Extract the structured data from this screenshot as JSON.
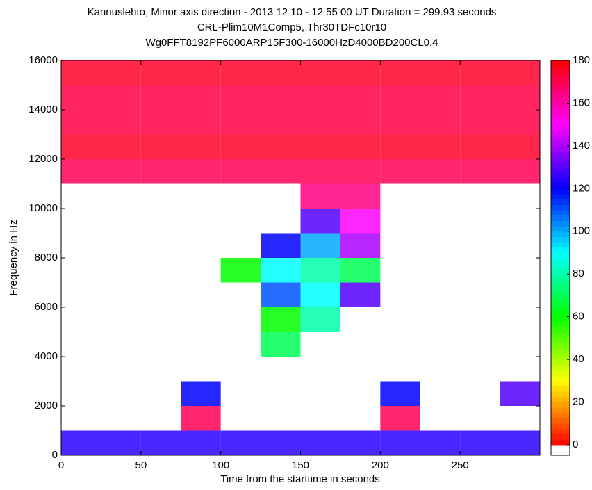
{
  "chart_data": {
    "type": "heatmap",
    "title": [
      "Kannuslehto, Minor axis direction - 2013 12 10 - 12 55 00 UT  Duration = 299.93 seconds",
      "CRL-Plim10M1Comp5, Thr30TDFc10r10",
      "Wg0FFT8192PF6000ARP15F300-16000HzD4000BD200CL0.4"
    ],
    "xlabel": "Time from the starttime in seconds",
    "ylabel": "Frequency in Hz",
    "x_edges": [
      0,
      25,
      50,
      75,
      100,
      125,
      150,
      175,
      200,
      225,
      250,
      275,
      300
    ],
    "y_edges": [
      0,
      1000,
      2000,
      3000,
      4000,
      5000,
      6000,
      7000,
      8000,
      9000,
      10000,
      11000,
      12000,
      13000,
      14000,
      15000,
      16000
    ],
    "z": [
      [
        125,
        125,
        125,
        125,
        125,
        125,
        125,
        125,
        125,
        125,
        125,
        125
      ],
      [
        null,
        null,
        null,
        170,
        null,
        null,
        null,
        null,
        170,
        null,
        null,
        null
      ],
      [
        null,
        null,
        null,
        120,
        null,
        null,
        null,
        null,
        120,
        null,
        null,
        130
      ],
      [
        null,
        null,
        null,
        null,
        null,
        null,
        null,
        null,
        null,
        null,
        null,
        null
      ],
      [
        null,
        null,
        null,
        null,
        null,
        70,
        null,
        null,
        null,
        null,
        null,
        null
      ],
      [
        null,
        null,
        null,
        null,
        null,
        60,
        80,
        null,
        null,
        null,
        null,
        null
      ],
      [
        null,
        null,
        null,
        null,
        null,
        110,
        90,
        130,
        null,
        null,
        null,
        null
      ],
      [
        null,
        null,
        null,
        null,
        60,
        90,
        80,
        70,
        null,
        null,
        null,
        null
      ],
      [
        null,
        null,
        null,
        null,
        null,
        120,
        100,
        140,
        null,
        null,
        null,
        null
      ],
      [
        null,
        null,
        null,
        null,
        null,
        null,
        130,
        150,
        null,
        null,
        null,
        null
      ],
      [
        null,
        null,
        null,
        null,
        null,
        null,
        165,
        165,
        null,
        null,
        null,
        null
      ],
      [
        170,
        170,
        170,
        170,
        170,
        170,
        170,
        170,
        170,
        170,
        170,
        170
      ],
      [
        175,
        175,
        175,
        175,
        175,
        175,
        175,
        175,
        175,
        175,
        175,
        175
      ],
      [
        172,
        172,
        172,
        172,
        172,
        172,
        172,
        172,
        172,
        172,
        172,
        172
      ],
      [
        172,
        172,
        172,
        172,
        172,
        172,
        172,
        172,
        172,
        172,
        172,
        172
      ],
      [
        175,
        175,
        175,
        175,
        175,
        175,
        175,
        175,
        175,
        175,
        175,
        175
      ]
    ],
    "colormap": "hsv",
    "xlim": [
      0,
      300
    ],
    "xticks": [
      0,
      50,
      100,
      150,
      200,
      250
    ],
    "ylim": [
      0,
      16000
    ],
    "yticks": [
      0,
      2000,
      4000,
      6000,
      8000,
      10000,
      12000,
      14000,
      16000
    ],
    "clim": [
      0,
      180
    ],
    "cticks": [
      0,
      20,
      40,
      60,
      80,
      100,
      120,
      140,
      160,
      180
    ]
  }
}
